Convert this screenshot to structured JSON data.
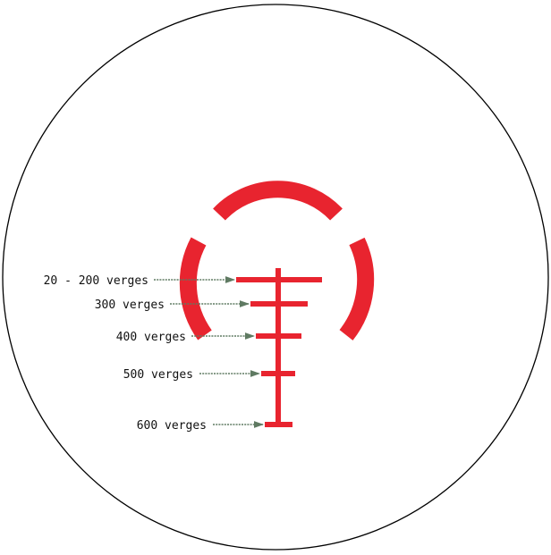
{
  "reticle": {
    "colors": {
      "reticle": "#e8242f",
      "housing": "#000000",
      "leader": "#5f7a62",
      "background": "#ffffff"
    },
    "horseshoe_arcs": 3,
    "range_marks": [
      {
        "label": "20 - 200 verges"
      },
      {
        "label": "300 verges"
      },
      {
        "label": "400 verges"
      },
      {
        "label": "500 verges"
      },
      {
        "label": "600 verges"
      }
    ]
  }
}
